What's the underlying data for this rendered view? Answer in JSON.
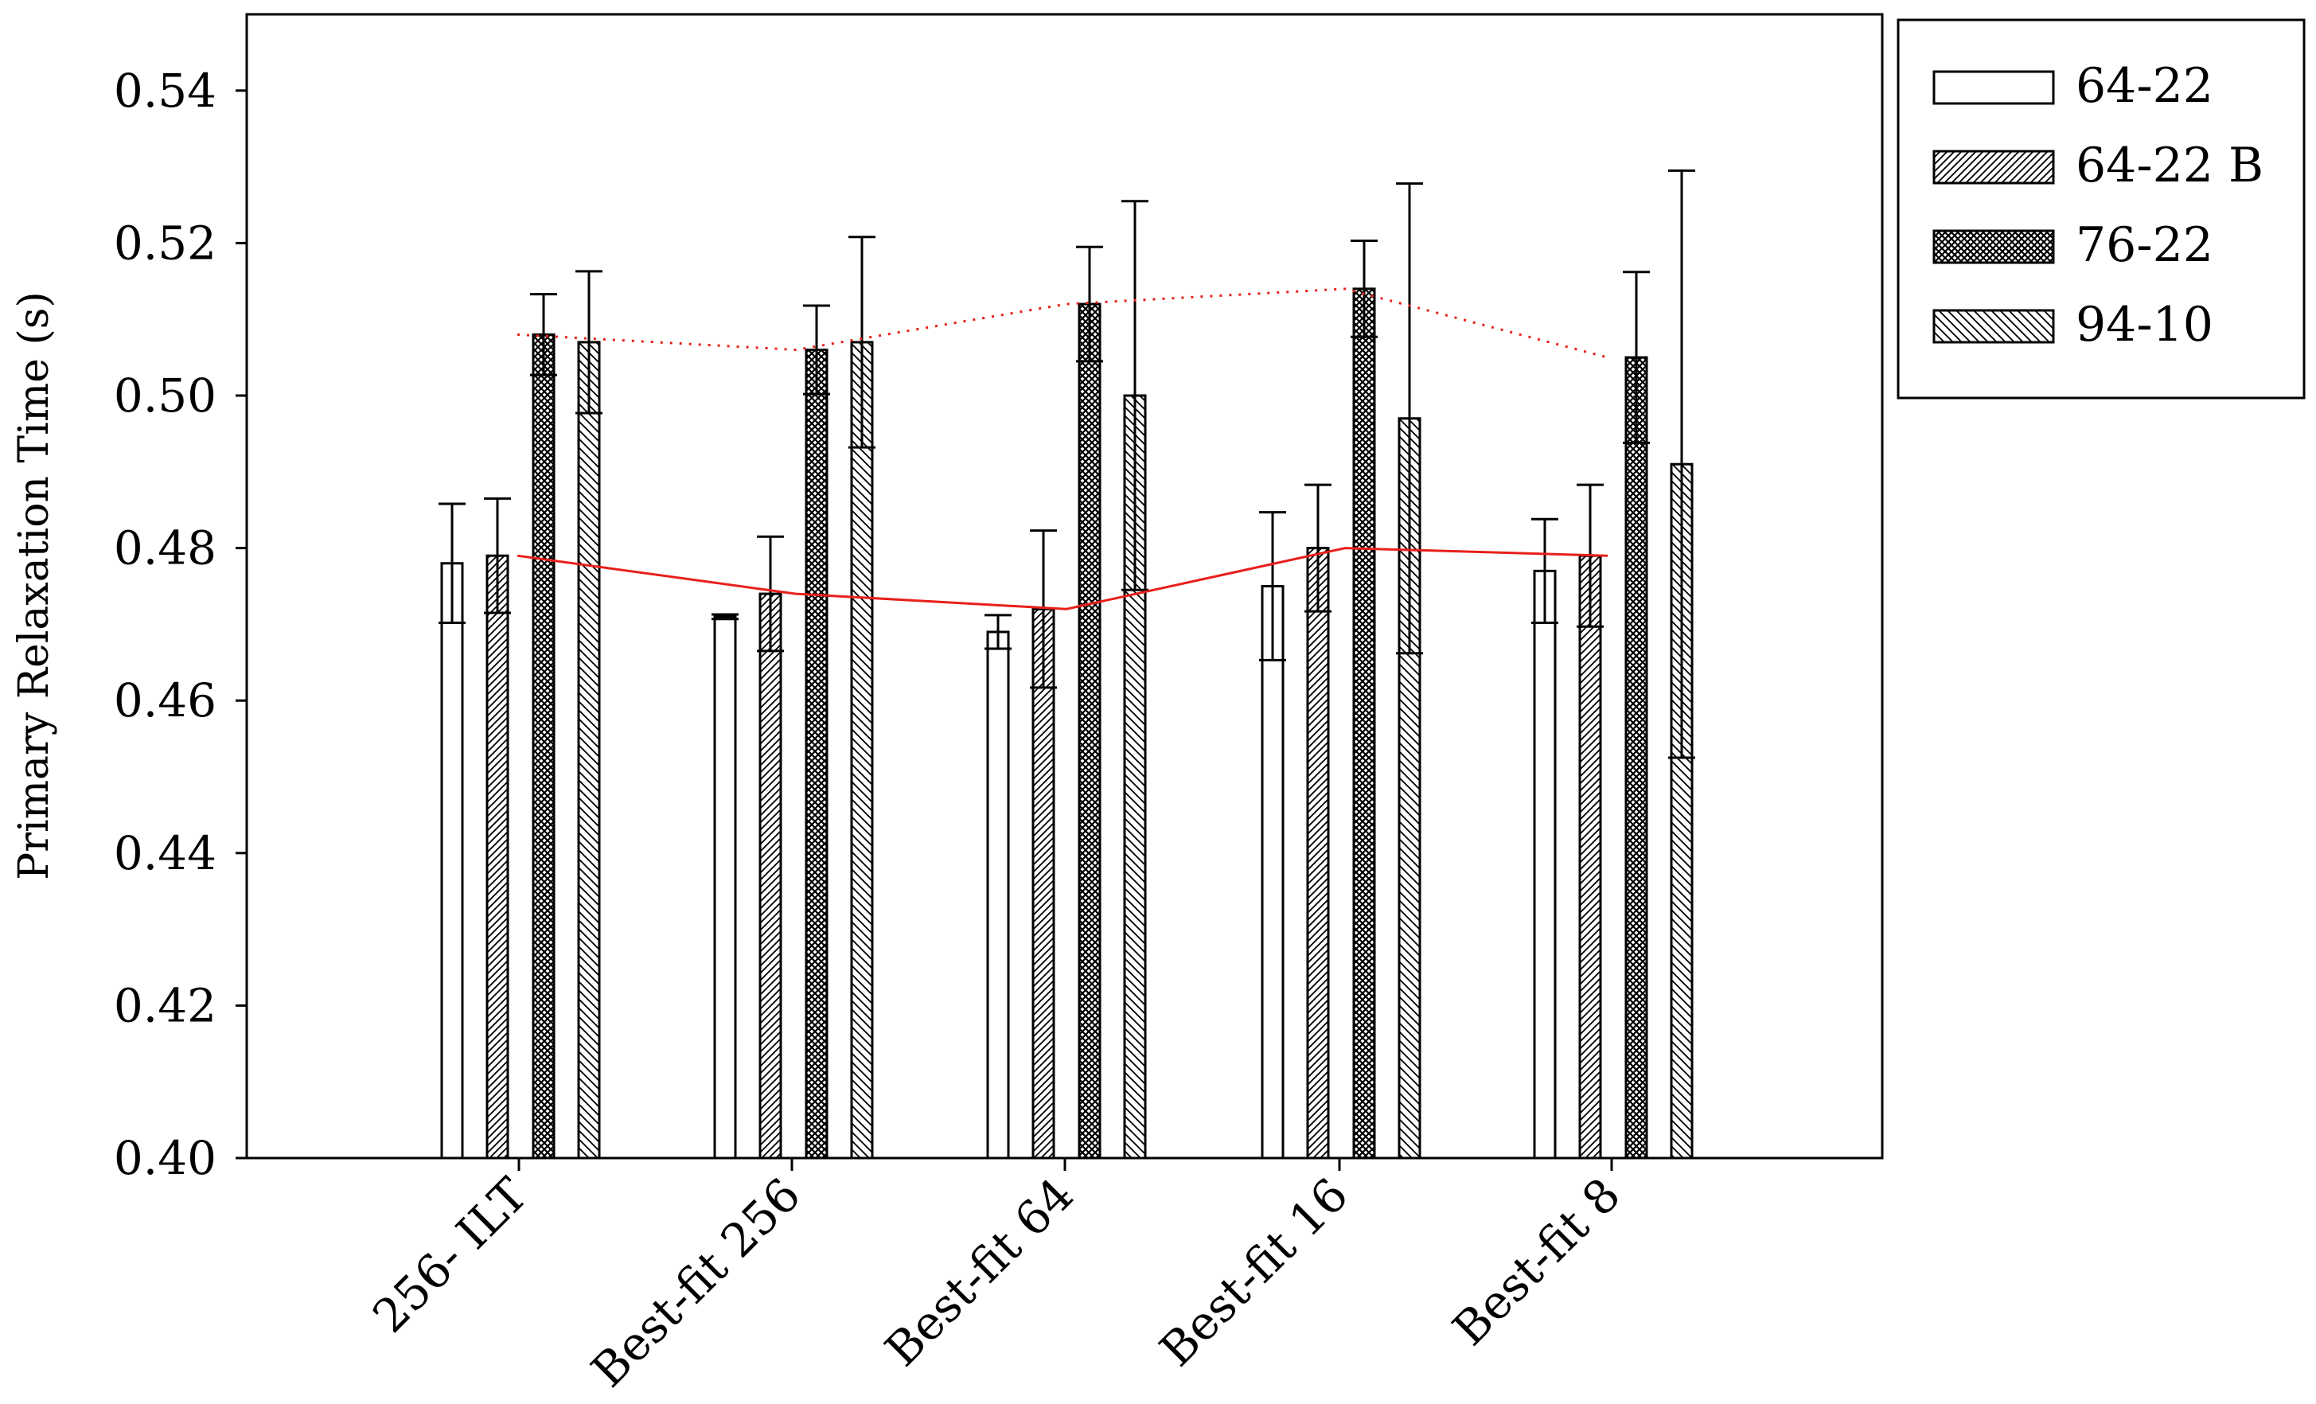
{
  "chart_data": {
    "type": "bar",
    "ylabel": "Primary Relaxation Time (s)",
    "xlabel": "",
    "ylim": [
      0.4,
      0.55
    ],
    "yticks": [
      "0.40",
      "0.42",
      "0.44",
      "0.46",
      "0.48",
      "0.50",
      "0.52",
      "0.54"
    ],
    "categories": [
      "256- ILT",
      "Best-fit 256",
      "Best-fit 64",
      "Best-fit 16",
      "Best-fit 8"
    ],
    "legend_position": "outside-right-top",
    "grid": false,
    "series": [
      {
        "name": "64-22",
        "pattern": "none",
        "values": [
          0.478,
          0.471,
          0.469,
          0.475,
          0.477
        ],
        "errors": [
          0.0078,
          0.0003,
          0.0022,
          0.0097,
          0.0068
        ]
      },
      {
        "name": "64-22 B",
        "pattern": "diag-fine",
        "values": [
          0.479,
          0.474,
          0.472,
          0.48,
          0.479
        ],
        "errors": [
          0.0075,
          0.0075,
          0.0103,
          0.0083,
          0.0093
        ]
      },
      {
        "name": "76-22",
        "pattern": "cross",
        "values": [
          0.508,
          0.506,
          0.512,
          0.514,
          0.505
        ],
        "errors": [
          0.0053,
          0.0058,
          0.0075,
          0.0063,
          0.0112
        ]
      },
      {
        "name": "94-10",
        "pattern": "diag-back",
        "values": [
          0.507,
          0.507,
          0.5,
          0.497,
          0.491
        ],
        "errors": [
          0.0093,
          0.0138,
          0.0255,
          0.0308,
          0.0385
        ]
      }
    ],
    "trend_lines": [
      {
        "style": "solid",
        "color": "#e8201b",
        "values": [
          0.479,
          0.474,
          0.472,
          0.48,
          0.479
        ]
      },
      {
        "style": "dotted",
        "color": "#e8201b",
        "values": [
          0.508,
          0.506,
          0.512,
          0.514,
          0.505
        ]
      }
    ]
  }
}
